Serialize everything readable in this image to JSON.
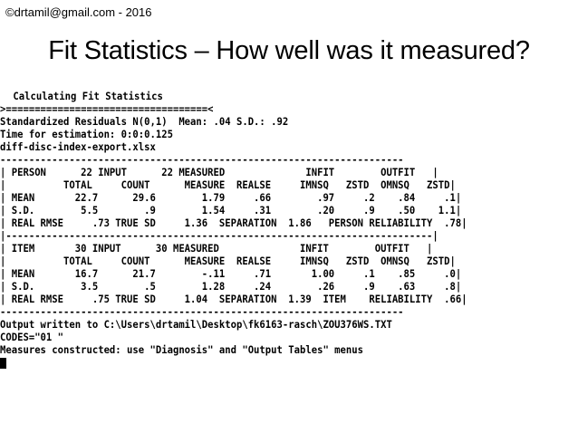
{
  "slide": {
    "copyright": "©drtamil@gmail.com - 2016",
    "title": "Fit Statistics – How well was it measured?"
  },
  "console": {
    "lines": [
      " Calculating Fit Statistics",
      ">===================================<",
      "Standardized Residuals N(0,1)  Mean: .04 S.D.: .92",
      "Time for estimation: 0:0:0.125",
      "diff-disc-index-export.xlsx",
      "----------------------------------------------------------------------",
      "| PERSON      22 INPUT      22 MEASURED              INFIT        OUTFIT   |",
      "|          TOTAL     COUNT      MEASURE  REALSE     IMNSQ   ZSTD  OMNSQ   ZSTD|",
      "| MEAN       22.7      29.6        1.79     .66        .97     .2    .84     .1|",
      "| S.D.        5.5        .9        1.54     .31        .20     .9    .50    1.1|",
      "| REAL RMSE     .73 TRUE SD     1.36  SEPARATION  1.86   PERSON RELIABILITY  .78|",
      "|--------------------------------------------------------------------------|",
      "| ITEM       30 INPUT      30 MEASURED              INFIT        OUTFIT   |",
      "|          TOTAL     COUNT      MEASURE  REALSE     IMNSQ   ZSTD  OMNSQ   ZSTD|",
      "| MEAN       16.7      21.7        -.11     .71       1.00     .1    .85     .0|",
      "| S.D.        3.5        .5        1.28     .24        .26     .9    .63     .8|",
      "| REAL RMSE     .75 TRUE SD     1.04  SEPARATION  1.39  ITEM    RELIABILITY  .66|",
      "----------------------------------------------------------------------",
      "Output written to C:\\Users\\drtamil\\Desktop\\fk6163-rasch\\ZOU376WS.TXT",
      "CODES=\"01 \"",
      "Measures constructed: use \"Diagnosis\" and \"Output Tables\" menus"
    ]
  }
}
